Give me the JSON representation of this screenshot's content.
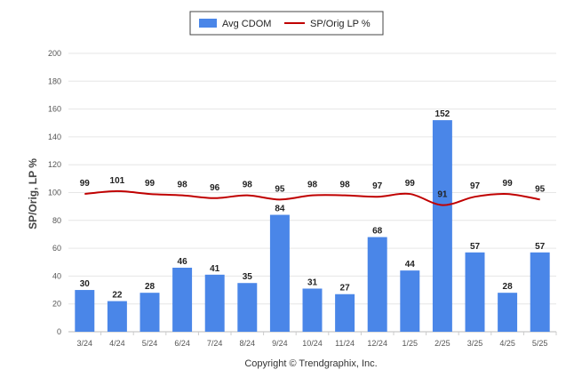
{
  "chart_data": {
    "type": "bar",
    "categories": [
      "3/24",
      "4/24",
      "5/24",
      "6/24",
      "7/24",
      "8/24",
      "9/24",
      "10/24",
      "11/24",
      "12/24",
      "1/25",
      "2/25",
      "3/25",
      "4/25",
      "5/25"
    ],
    "series": [
      {
        "name": "Avg CDOM",
        "type": "bar",
        "color": "#4a86e8",
        "values": [
          30,
          22,
          28,
          46,
          41,
          35,
          84,
          31,
          27,
          68,
          44,
          152,
          57,
          28,
          57
        ]
      },
      {
        "name": "SP/Orig LP %",
        "type": "line",
        "color": "#c00000",
        "values": [
          99,
          101,
          99,
          98,
          96,
          98,
          95,
          98,
          98,
          97,
          99,
          91,
          97,
          99,
          95
        ]
      }
    ],
    "ylabel": "SP/Orig, LP %",
    "ylim": [
      0,
      200
    ],
    "yticks": [
      0,
      20,
      40,
      60,
      80,
      100,
      120,
      140,
      160,
      180,
      200
    ],
    "grid": true,
    "legend_position": "top-center"
  },
  "footer": {
    "copyright": "Copyright © Trendgraphix, Inc."
  }
}
